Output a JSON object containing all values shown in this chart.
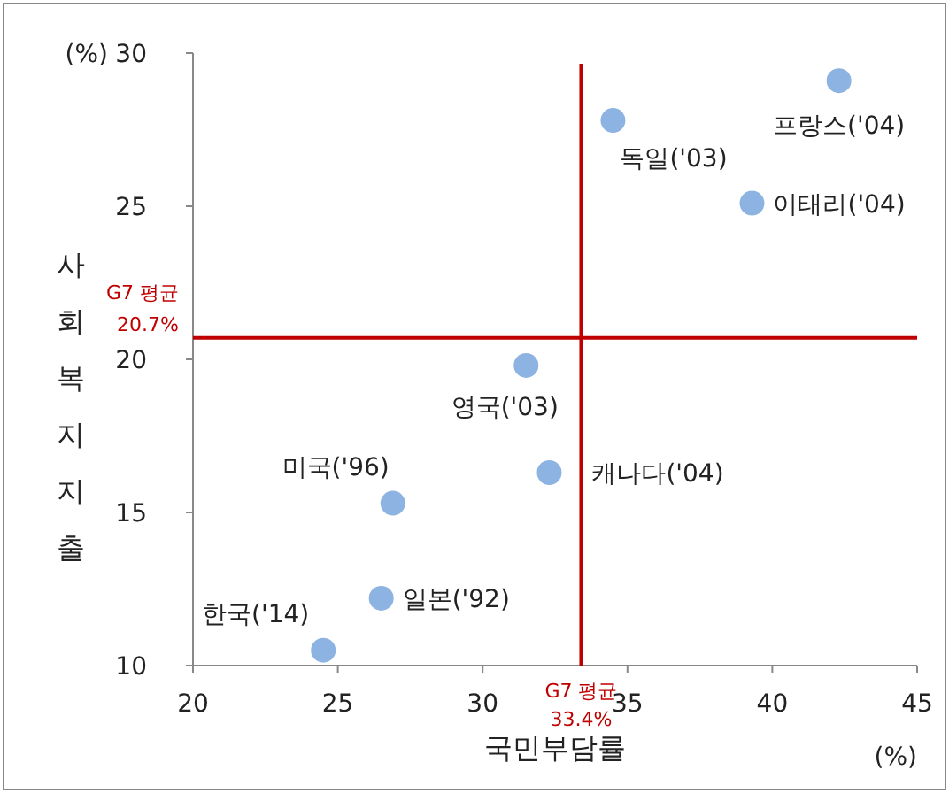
{
  "chart_data": {
    "type": "scatter",
    "xlabel": "국민부담률",
    "ylabel": "사회복지지출",
    "series": [
      {
        "color": "#8db3e2",
        "x": [
          42.3,
          34.5,
          39.3,
          31.5,
          32.3,
          26.9,
          26.5,
          24.5
        ],
        "values": [
          29.1,
          27.8,
          25.1,
          19.8,
          16.3,
          15.3,
          12.2,
          10.5
        ]
      }
    ],
    "marker": "circle",
    "xlim": [
      20,
      45
    ],
    "ylim": [
      10,
      30
    ],
    "xticks": [
      20,
      25,
      30,
      35,
      40,
      45
    ],
    "yticks": [
      10,
      15,
      20,
      25,
      30
    ],
    "grid": false,
    "ref_lines": [
      {
        "axis": "x",
        "value": 33.4,
        "label": "G7 평균\n33.4%",
        "color": "#c00000"
      },
      {
        "axis": "y",
        "value": 20.7,
        "label": "G7 평균\n20.7%",
        "color": "#c00000"
      }
    ],
    "annotations": [
      {
        "text": "프랑스('04)",
        "x": 42.3,
        "y": 29.1
      },
      {
        "text": "독일('03)",
        "x": 34.5,
        "y": 27.8
      },
      {
        "text": "이태리('04)",
        "x": 39.3,
        "y": 25.1
      },
      {
        "text": "영국('03)",
        "x": 31.5,
        "y": 19.8
      },
      {
        "text": "캐나다('04)",
        "x": 32.3,
        "y": 16.3
      },
      {
        "text": "미국('96)",
        "x": 26.9,
        "y": 15.3
      },
      {
        "text": "일본('92)",
        "x": 26.5,
        "y": 12.2
      },
      {
        "text": "한국('14)",
        "x": 24.5,
        "y": 10.5
      },
      "(%)",
      "(%)"
    ]
  }
}
